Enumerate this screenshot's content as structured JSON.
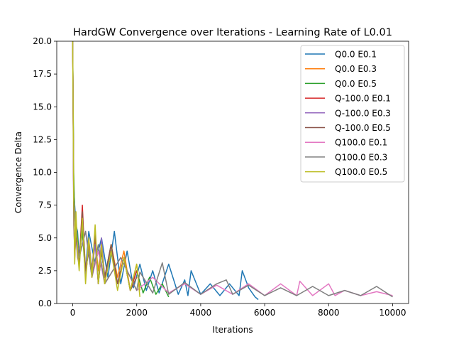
{
  "chart_data": {
    "type": "line",
    "title": "HardGW Convergence over Iterations - Learning Rate of L0.01",
    "xlabel": "Iterations",
    "ylabel": "Convergence Delta",
    "xlim": [
      -500,
      10500
    ],
    "ylim": [
      0,
      20
    ],
    "xticks": [
      0,
      2000,
      4000,
      6000,
      8000,
      10000
    ],
    "xtick_labels": [
      "0",
      "2000",
      "4000",
      "6000",
      "8000",
      "10000"
    ],
    "yticks": [
      0.0,
      2.5,
      5.0,
      7.5,
      10.0,
      12.5,
      15.0,
      17.5,
      20.0
    ],
    "ytick_labels": [
      "0.0",
      "2.5",
      "5.0",
      "7.5",
      "10.0",
      "12.5",
      "15.0",
      "17.5",
      "20.0"
    ],
    "grid": false,
    "legend_position": "upper right",
    "series": [
      {
        "name": "Q0.0 E0.1",
        "color": "#1f77b4",
        "x": [
          0,
          30,
          60,
          100,
          150,
          200,
          300,
          400,
          500,
          700,
          900,
          1100,
          1300,
          1500,
          1700,
          1900,
          2100,
          2300,
          2500,
          2700,
          3000,
          3300,
          3500,
          3600,
          3700,
          4000,
          4300,
          4600,
          4900,
          5200,
          5300,
          5500,
          5700,
          5800
        ],
        "y": [
          20,
          9.0,
          7.5,
          6.0,
          5.5,
          3.5,
          6.0,
          2.5,
          5.5,
          3.0,
          5.0,
          2.0,
          5.5,
          1.5,
          4.0,
          1.2,
          3.0,
          1.0,
          2.5,
          0.8,
          3.0,
          0.7,
          1.8,
          0.6,
          2.5,
          0.7,
          1.5,
          0.6,
          1.5,
          0.6,
          2.5,
          1.2,
          0.5,
          0.3
        ]
      },
      {
        "name": "Q0.0 E0.3",
        "color": "#ff7f0e",
        "x": [
          0,
          30,
          60,
          100,
          150,
          200,
          300,
          400,
          500,
          600,
          700,
          800,
          900,
          1000,
          1200,
          1400,
          1600,
          1800,
          2000,
          2100
        ],
        "y": [
          20,
          8.0,
          7.0,
          5.5,
          4.5,
          3.5,
          5.5,
          2.5,
          4.5,
          2.0,
          5.0,
          2.5,
          4.5,
          1.5,
          4.5,
          2.0,
          4.0,
          1.0,
          3.0,
          1.0
        ]
      },
      {
        "name": "Q0.0 E0.5",
        "color": "#2ca02c",
        "x": [
          0,
          30,
          60,
          100,
          150,
          200,
          300,
          400,
          500,
          600,
          700,
          800,
          900,
          1000,
          1200,
          1400,
          1600,
          1800,
          2000,
          2200,
          2400,
          2600,
          2800,
          3000
        ],
        "y": [
          20,
          10.0,
          7.0,
          6.0,
          5.0,
          3.5,
          5.5,
          2.0,
          4.5,
          2.5,
          5.0,
          1.5,
          4.0,
          2.0,
          4.5,
          1.5,
          3.5,
          1.0,
          2.5,
          0.8,
          2.0,
          0.7,
          1.5,
          0.5
        ]
      },
      {
        "name": "Q-100.0 E0.1",
        "color": "#d62728",
        "x": [
          0,
          30,
          60,
          100,
          150,
          200,
          300,
          400,
          500,
          600,
          700,
          800,
          900,
          1000,
          1200,
          1400,
          1600,
          1800,
          2000
        ],
        "y": [
          20,
          7.0,
          3.5,
          6.0,
          4.0,
          3.0,
          7.5,
          2.0,
          4.5,
          2.5,
          5.0,
          1.5,
          4.5,
          2.0,
          4.0,
          1.5,
          3.5,
          1.0,
          2.5
        ]
      },
      {
        "name": "Q-100.0 E0.3",
        "color": "#9467bd",
        "x": [
          0,
          30,
          60,
          100,
          150,
          200,
          300,
          400,
          500,
          600,
          700,
          800,
          900,
          1000,
          1200,
          1400,
          1600,
          1800,
          2000
        ],
        "y": [
          20,
          6.0,
          4.0,
          5.0,
          3.5,
          3.0,
          6.5,
          2.0,
          5.0,
          2.5,
          4.5,
          1.5,
          5.0,
          2.0,
          4.0,
          1.5,
          3.5,
          1.0,
          2.0
        ]
      },
      {
        "name": "Q-100.0 E0.5",
        "color": "#8c564b",
        "x": [
          0,
          30,
          60,
          100,
          150,
          200,
          300,
          400,
          500,
          600,
          700,
          800,
          900,
          1000,
          1200,
          1400,
          1600,
          1800,
          2000
        ],
        "y": [
          20,
          7.5,
          3.5,
          5.5,
          4.0,
          3.0,
          7.0,
          2.5,
          4.0,
          2.5,
          5.5,
          1.5,
          4.0,
          2.0,
          4.5,
          1.5,
          3.5,
          1.0,
          2.0
        ]
      },
      {
        "name": "Q100.0 E0.1",
        "color": "#e377c2",
        "x": [
          0,
          30,
          60,
          100,
          150,
          200,
          400,
          600,
          800,
          1000,
          1500,
          2000,
          2500,
          3000,
          3500,
          4000,
          4500,
          5000,
          5500,
          6000,
          6500,
          7000,
          7100,
          7500,
          8000,
          8200,
          8500,
          9000,
          9500,
          10000
        ],
        "y": [
          20,
          8.0,
          7.0,
          5.5,
          4.5,
          3.5,
          5.5,
          2.0,
          4.0,
          1.5,
          3.5,
          1.0,
          2.0,
          0.8,
          1.5,
          0.7,
          1.4,
          0.7,
          1.5,
          0.6,
          1.5,
          0.6,
          1.7,
          0.6,
          1.5,
          0.6,
          1.0,
          0.6,
          0.9,
          0.6
        ]
      },
      {
        "name": "Q100.0 E0.3",
        "color": "#7f7f7f",
        "x": [
          0,
          30,
          60,
          100,
          150,
          200,
          400,
          600,
          800,
          1000,
          1500,
          2000,
          2100,
          2500,
          2800,
          3000,
          3500,
          4000,
          4500,
          4800,
          5000,
          5500,
          6000,
          6500,
          7000,
          7500,
          8000,
          8500,
          9000,
          9500,
          10000
        ],
        "y": [
          20,
          8.0,
          7.0,
          5.5,
          4.5,
          3.5,
          5.5,
          2.0,
          4.5,
          1.5,
          3.5,
          1.0,
          2.4,
          0.8,
          3.1,
          0.7,
          1.6,
          0.7,
          1.5,
          1.8,
          0.7,
          1.4,
          0.6,
          1.2,
          0.6,
          1.3,
          0.6,
          1.0,
          0.6,
          1.3,
          0.5
        ]
      },
      {
        "name": "Q100.0 E0.5",
        "color": "#bcbd22",
        "x": [
          0,
          30,
          60,
          100,
          150,
          200,
          300,
          400,
          500,
          600,
          700,
          800,
          900,
          1000,
          1200,
          1400,
          1600,
          1800,
          2000,
          2100
        ],
        "y": [
          20,
          8.0,
          3.0,
          7.0,
          4.0,
          2.5,
          6.5,
          1.5,
          5.0,
          2.0,
          6.0,
          1.5,
          4.5,
          1.5,
          4.0,
          1.0,
          3.5,
          1.0,
          3.0,
          0.5
        ]
      }
    ]
  }
}
